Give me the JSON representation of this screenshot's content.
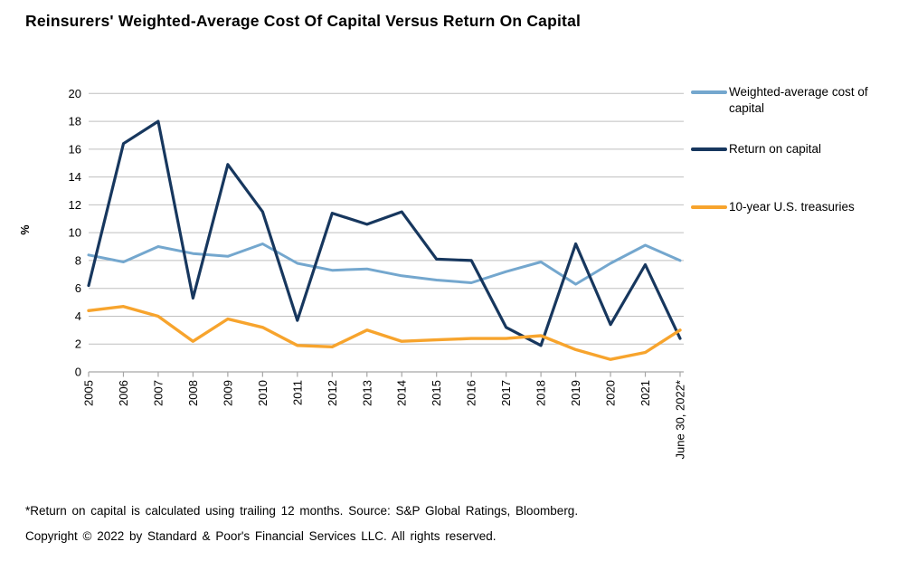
{
  "title": "Reinsurers' Weighted-Average Cost Of Capital Versus Return On Capital",
  "chart_data": {
    "type": "line",
    "categories": [
      "2005",
      "2006",
      "2007",
      "2008",
      "2009",
      "2010",
      "2011",
      "2012",
      "2013",
      "2014",
      "2015",
      "2016",
      "2017",
      "2018",
      "2019",
      "2020",
      "2021",
      "June 30, 2022*"
    ],
    "series": [
      {
        "name": "Weighted-average cost of capital",
        "color": "#74A7CE",
        "values": [
          8.4,
          7.9,
          9.0,
          8.5,
          8.3,
          9.2,
          7.8,
          7.3,
          7.4,
          6.9,
          6.6,
          6.4,
          7.2,
          7.9,
          6.3,
          7.8,
          9.1,
          8.0
        ]
      },
      {
        "name": "Return on capital",
        "color": "#17375E",
        "values": [
          6.2,
          16.4,
          18.0,
          5.3,
          14.9,
          11.5,
          3.7,
          11.4,
          10.6,
          11.5,
          8.1,
          8.0,
          3.2,
          1.9,
          9.2,
          3.4,
          7.7,
          2.4
        ]
      },
      {
        "name": "10-year U.S. treasuries",
        "color": "#F7A42D",
        "values": [
          4.4,
          4.7,
          4.0,
          2.2,
          3.8,
          3.2,
          1.9,
          1.8,
          3.0,
          2.2,
          2.3,
          2.4,
          2.4,
          2.6,
          1.6,
          0.9,
          1.4,
          3.0
        ]
      }
    ],
    "title": "Reinsurers' Weighted-Average Cost Of Capital Versus Return On Capital",
    "xlabel": "",
    "ylabel": "%",
    "ylim": [
      0,
      20
    ],
    "ytick_step": 2,
    "grid": "horizontal",
    "legend_position": "right",
    "colors": {
      "gridline": "#BFBFBF",
      "axis": "#A6A6A6",
      "text": "#000000"
    }
  },
  "footnotes": {
    "line1": "*Return on capital is calculated using trailing 12 months. Source: S&P Global Ratings, Bloomberg.",
    "line2": "Copyright © 2022 by Standard & Poor's Financial Services LLC. All rights reserved."
  }
}
